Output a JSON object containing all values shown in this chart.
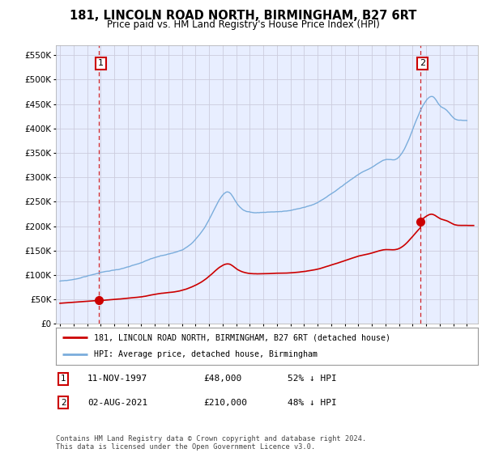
{
  "title": "181, LINCOLN ROAD NORTH, BIRMINGHAM, B27 6RT",
  "subtitle": "Price paid vs. HM Land Registry's House Price Index (HPI)",
  "ytick_values": [
    0,
    50000,
    100000,
    150000,
    200000,
    250000,
    300000,
    350000,
    400000,
    450000,
    500000,
    550000
  ],
  "ylim": [
    0,
    570000
  ],
  "legend_line1": "181, LINCOLN ROAD NORTH, BIRMINGHAM, B27 6RT (detached house)",
  "legend_line2": "HPI: Average price, detached house, Birmingham",
  "annotation1_date": "11-NOV-1997",
  "annotation1_price": "£48,000",
  "annotation1_hpi": "52% ↓ HPI",
  "annotation2_date": "02-AUG-2021",
  "annotation2_price": "£210,000",
  "annotation2_hpi": "48% ↓ HPI",
  "footnote": "Contains HM Land Registry data © Crown copyright and database right 2024.\nThis data is licensed under the Open Government Licence v3.0.",
  "sale1_x": 1997.87,
  "sale1_y": 48000,
  "sale2_x": 2021.58,
  "sale2_y": 210000,
  "background_color": "#ffffff",
  "grid_color": "#ccccdd",
  "plot_bg_color": "#e8eeff",
  "red_line_color": "#cc0000",
  "blue_line_color": "#7aaddc",
  "annotation_box_color": "#cc0000",
  "xlim_left": 1994.7,
  "xlim_right": 2025.8
}
